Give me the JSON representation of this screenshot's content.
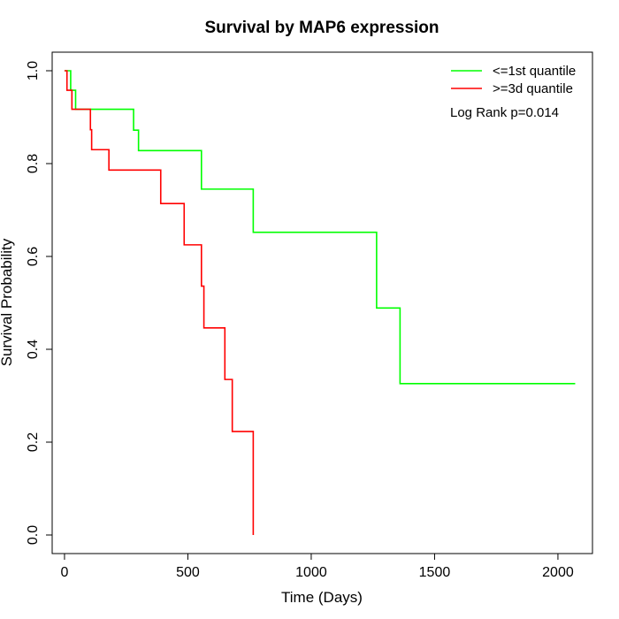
{
  "chart_data": {
    "type": "line",
    "title": "Survival by MAP6 expression",
    "xlabel": "Time (Days)",
    "ylabel": "Survival Probability",
    "xlim": [
      -50,
      2140
    ],
    "ylim": [
      -0.04,
      1.04
    ],
    "x_ticks": [
      0,
      500,
      1000,
      1500,
      2000
    ],
    "x_tick_labels": [
      "0",
      "500",
      "1000",
      "1500",
      "2000"
    ],
    "y_ticks": [
      0.0,
      0.2,
      0.4,
      0.6,
      0.8,
      1.0
    ],
    "y_tick_labels": [
      "0.0",
      "0.2",
      "0.4",
      "0.6",
      "0.8",
      "1.0"
    ],
    "grid": false,
    "legend_position": "top-right",
    "annotation": "Log Rank p=0.014",
    "series": [
      {
        "name": "<=1st quantile",
        "color": "#00ff00",
        "step_points": [
          [
            0,
            1.0
          ],
          [
            25,
            0.958
          ],
          [
            45,
            0.917
          ],
          [
            280,
            0.872
          ],
          [
            300,
            0.828
          ],
          [
            555,
            0.745
          ],
          [
            765,
            0.652
          ],
          [
            1265,
            0.489
          ],
          [
            1360,
            0.326
          ],
          [
            2070,
            0.326
          ]
        ]
      },
      {
        "name": ">=3d quantile",
        "color": "#ff0000",
        "step_points": [
          [
            0,
            1.0
          ],
          [
            10,
            0.958
          ],
          [
            30,
            0.917
          ],
          [
            105,
            0.873
          ],
          [
            110,
            0.83
          ],
          [
            180,
            0.786
          ],
          [
            390,
            0.714
          ],
          [
            485,
            0.625
          ],
          [
            555,
            0.536
          ],
          [
            565,
            0.446
          ],
          [
            650,
            0.335
          ],
          [
            680,
            0.223
          ],
          [
            765,
            0.0
          ]
        ]
      }
    ]
  }
}
